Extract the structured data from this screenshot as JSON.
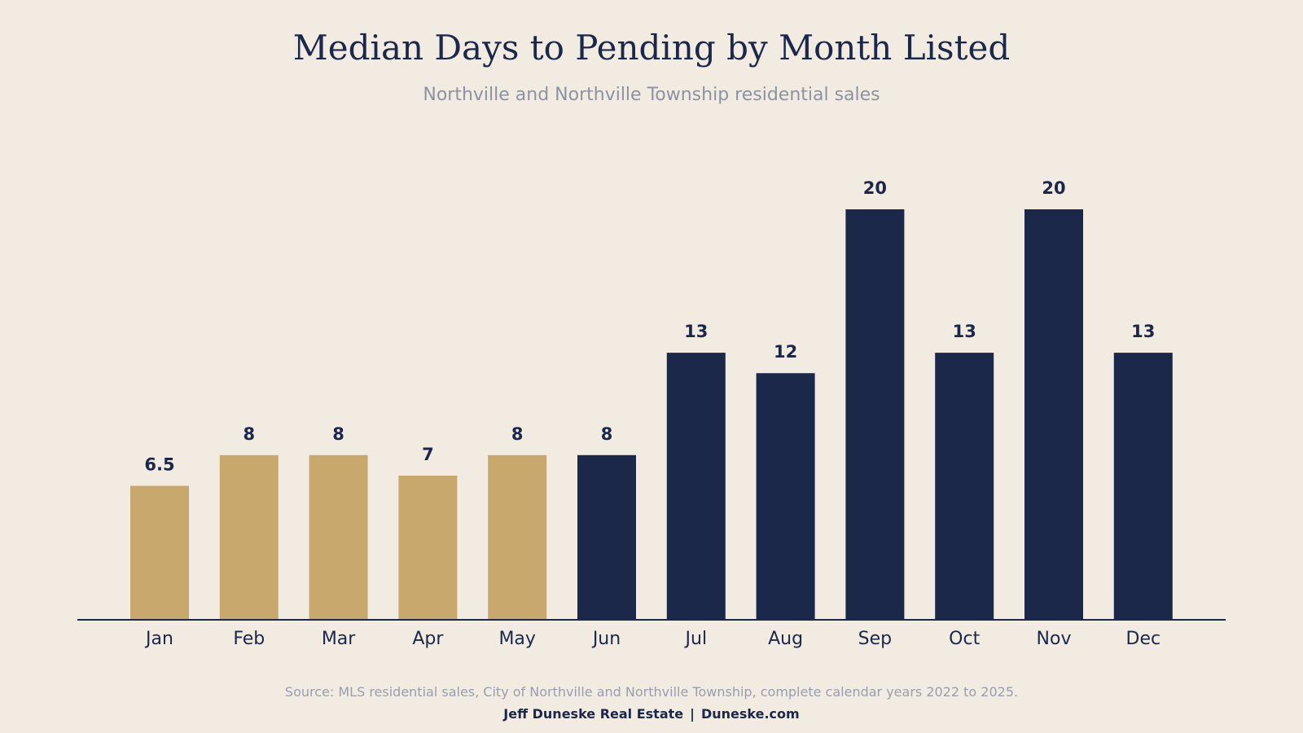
{
  "title": "Median Days to Pending by Month Listed",
  "subtitle": "Northville and Northville Township residential sales",
  "footer": {
    "source": "Source: MLS residential sales, City of Northville and Northville Township, complete calendar years 2022 to 2025.",
    "brand_name": "Jeff Duneske Real Estate",
    "separator": "|",
    "brand_site": "Duneske.com"
  },
  "colors": {
    "background": "#f2ebe2",
    "gold": "#c9a86e",
    "navy": "#1b2849",
    "muted_text": "#8d92a3"
  },
  "chart_data": {
    "type": "bar",
    "title": "Median Days to Pending by Month Listed",
    "subtitle": "Northville and Northville Township residential sales",
    "xlabel": "",
    "ylabel": "",
    "categories": [
      "Jan",
      "Feb",
      "Mar",
      "Apr",
      "May",
      "Jun",
      "Jul",
      "Aug",
      "Sep",
      "Oct",
      "Nov",
      "Dec"
    ],
    "values": [
      6.5,
      8,
      8,
      7,
      8,
      8,
      13,
      12,
      20,
      13,
      20,
      13
    ],
    "data_labels": [
      "6.5",
      "8",
      "8",
      "7",
      "8",
      "8",
      "13",
      "12",
      "20",
      "13",
      "20",
      "13"
    ],
    "bar_colors": [
      "#c9a86e",
      "#c9a86e",
      "#c9a86e",
      "#c9a86e",
      "#c9a86e",
      "#1b2849",
      "#1b2849",
      "#1b2849",
      "#1b2849",
      "#1b2849",
      "#1b2849",
      "#1b2849"
    ],
    "ylim": [
      0,
      20
    ],
    "grid": false,
    "legend": "none"
  }
}
